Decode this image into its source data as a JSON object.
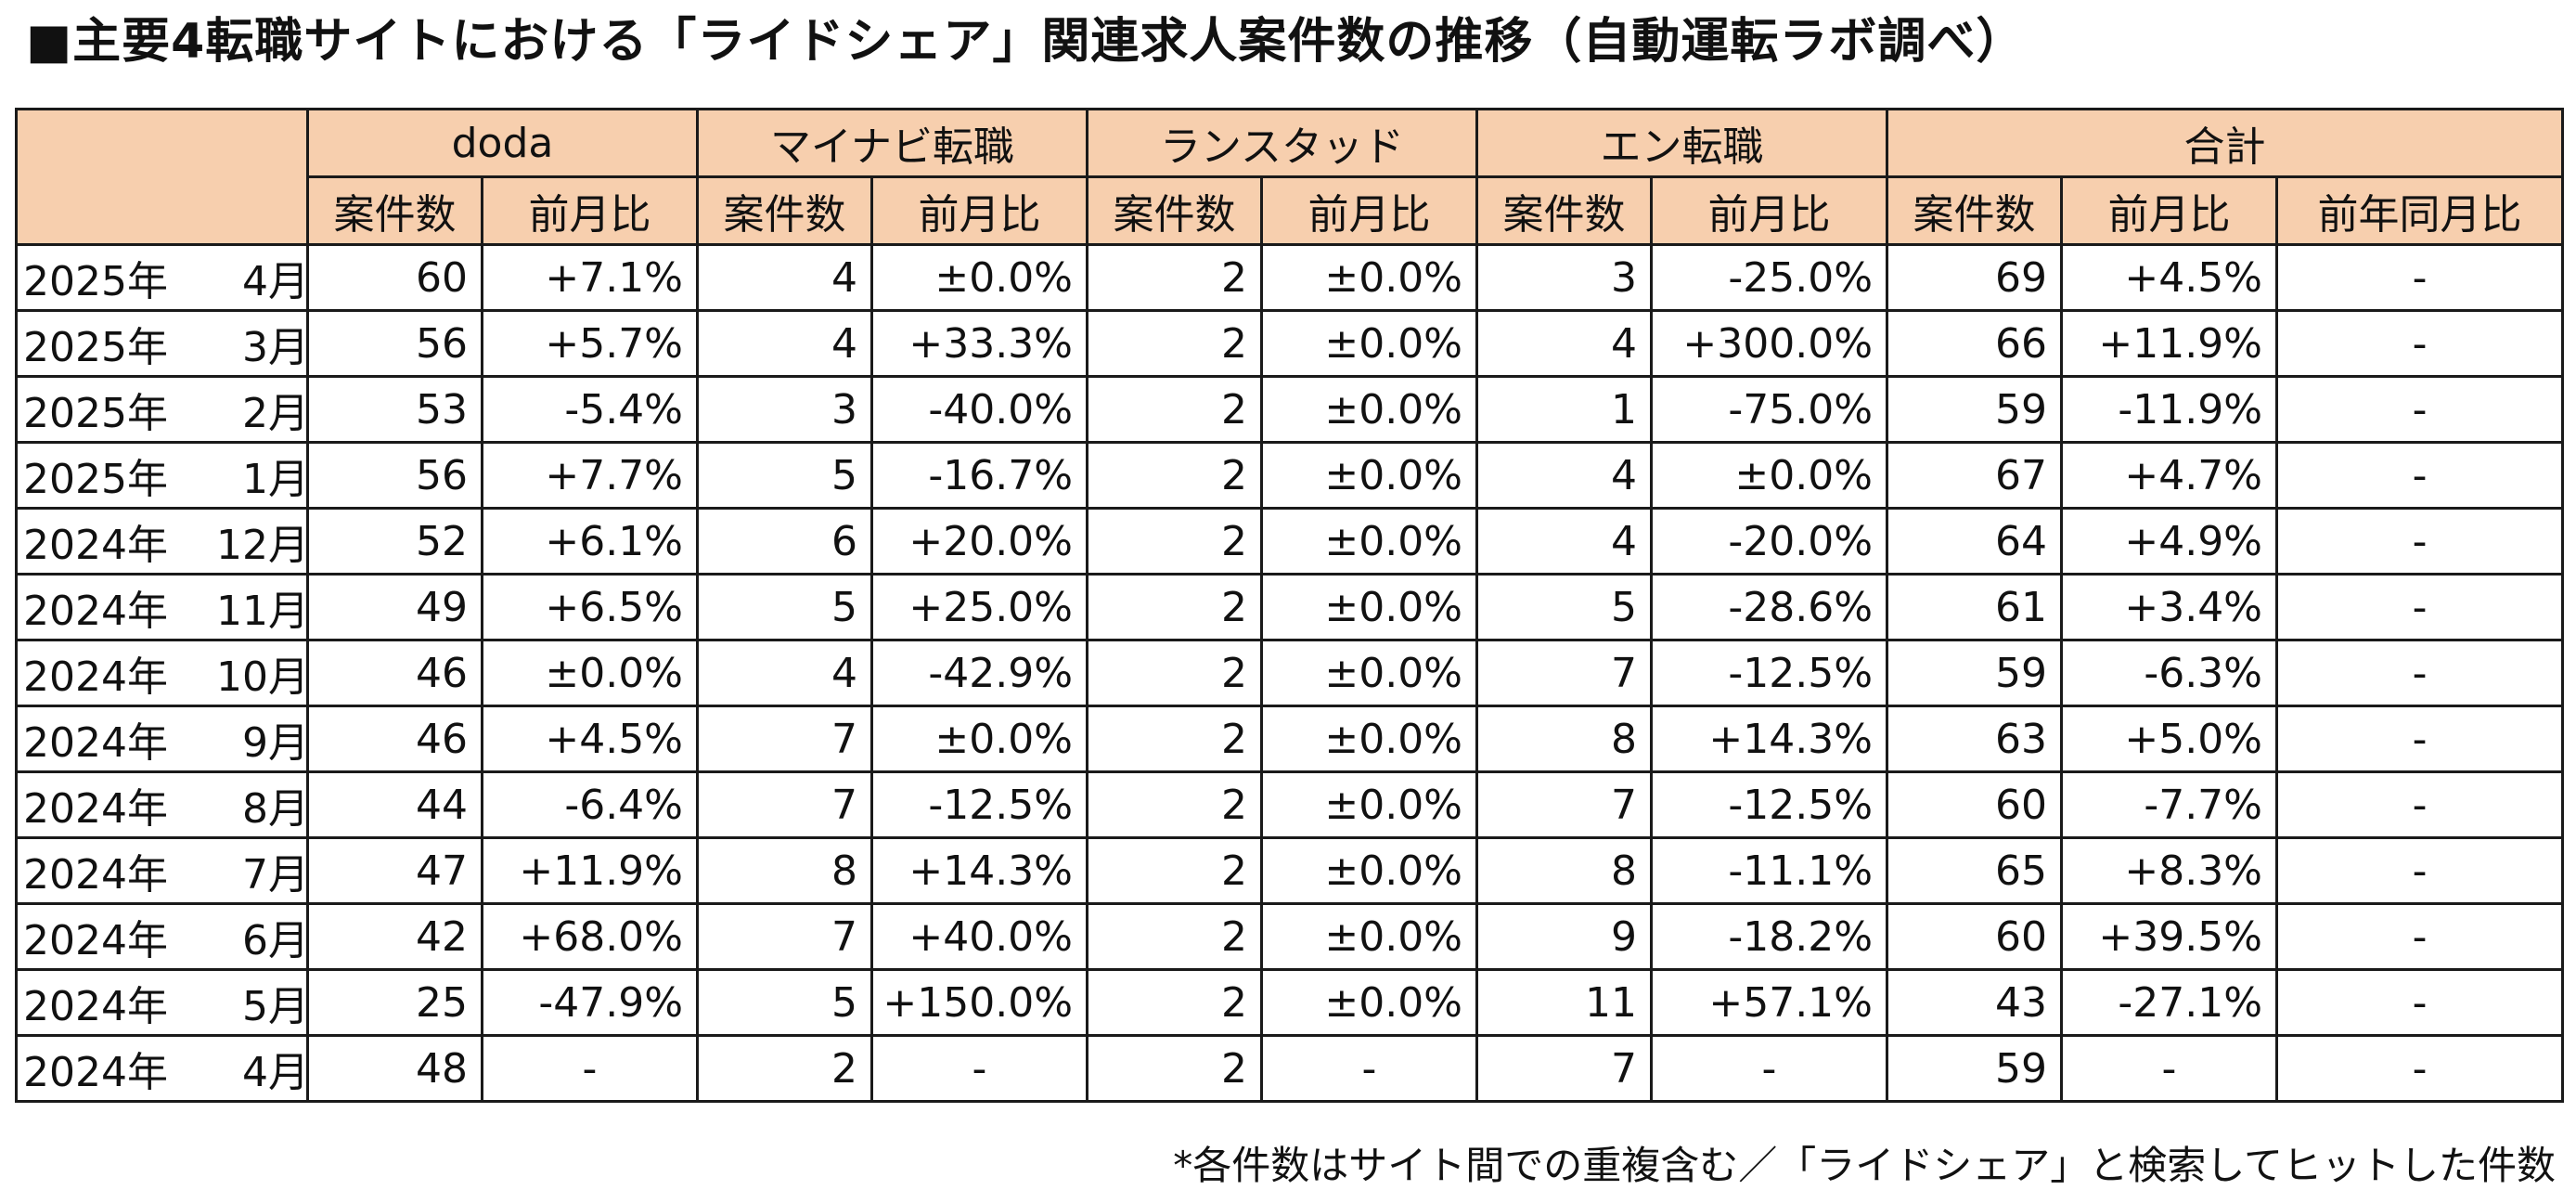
{
  "title": "■主要4転職サイトにおける「ライドシェア」関連求人案件数の推移（自動運転ラボ調べ）",
  "sites": [
    "doda",
    "マイナビ転職",
    "ランスタッド",
    "エン転職",
    "合計"
  ],
  "sub_headers": {
    "count": "案件数",
    "mom": "前月比",
    "yoy": "前年同月比"
  },
  "rows": [
    {
      "year": "2025年",
      "month": "4月",
      "cells": [
        "60",
        "+7.1%",
        "4",
        "±0.0%",
        "2",
        "±0.0%",
        "3",
        "-25.0%",
        "69",
        "+4.5%",
        "-"
      ]
    },
    {
      "year": "2025年",
      "month": "3月",
      "cells": [
        "56",
        "+5.7%",
        "4",
        "+33.3%",
        "2",
        "±0.0%",
        "4",
        "+300.0%",
        "66",
        "+11.9%",
        "-"
      ]
    },
    {
      "year": "2025年",
      "month": "2月",
      "cells": [
        "53",
        "-5.4%",
        "3",
        "-40.0%",
        "2",
        "±0.0%",
        "1",
        "-75.0%",
        "59",
        "-11.9%",
        "-"
      ]
    },
    {
      "year": "2025年",
      "month": "1月",
      "cells": [
        "56",
        "+7.7%",
        "5",
        "-16.7%",
        "2",
        "±0.0%",
        "4",
        "±0.0%",
        "67",
        "+4.7%",
        "-"
      ]
    },
    {
      "year": "2024年",
      "month": "12月",
      "cells": [
        "52",
        "+6.1%",
        "6",
        "+20.0%",
        "2",
        "±0.0%",
        "4",
        "-20.0%",
        "64",
        "+4.9%",
        "-"
      ]
    },
    {
      "year": "2024年",
      "month": "11月",
      "cells": [
        "49",
        "+6.5%",
        "5",
        "+25.0%",
        "2",
        "±0.0%",
        "5",
        "-28.6%",
        "61",
        "+3.4%",
        "-"
      ]
    },
    {
      "year": "2024年",
      "month": "10月",
      "cells": [
        "46",
        "±0.0%",
        "4",
        "-42.9%",
        "2",
        "±0.0%",
        "7",
        "-12.5%",
        "59",
        "-6.3%",
        "-"
      ]
    },
    {
      "year": "2024年",
      "month": "9月",
      "cells": [
        "46",
        "+4.5%",
        "7",
        "±0.0%",
        "2",
        "±0.0%",
        "8",
        "+14.3%",
        "63",
        "+5.0%",
        "-"
      ]
    },
    {
      "year": "2024年",
      "month": "8月",
      "cells": [
        "44",
        "-6.4%",
        "7",
        "-12.5%",
        "2",
        "±0.0%",
        "7",
        "-12.5%",
        "60",
        "-7.7%",
        "-"
      ]
    },
    {
      "year": "2024年",
      "month": "7月",
      "cells": [
        "47",
        "+11.9%",
        "8",
        "+14.3%",
        "2",
        "±0.0%",
        "8",
        "-11.1%",
        "65",
        "+8.3%",
        "-"
      ]
    },
    {
      "year": "2024年",
      "month": "6月",
      "cells": [
        "42",
        "+68.0%",
        "7",
        "+40.0%",
        "2",
        "±0.0%",
        "9",
        "-18.2%",
        "60",
        "+39.5%",
        "-"
      ]
    },
    {
      "year": "2024年",
      "month": "5月",
      "cells": [
        "25",
        "-47.9%",
        "5",
        "+150.0%",
        "2",
        "±0.0%",
        "11",
        "+57.1%",
        "43",
        "-27.1%",
        "-"
      ]
    },
    {
      "year": "2024年",
      "month": "4月",
      "cells": [
        "48",
        "-",
        "2",
        "-",
        "2",
        "-",
        "7",
        "-",
        "59",
        "-",
        "-"
      ]
    }
  ],
  "footnote": "*各件数はサイト間での重複含む／「ライドシェア」と検索してヒットした件数",
  "colors": {
    "header_fill": "#f7cfae",
    "border": "#1a1a1a"
  }
}
